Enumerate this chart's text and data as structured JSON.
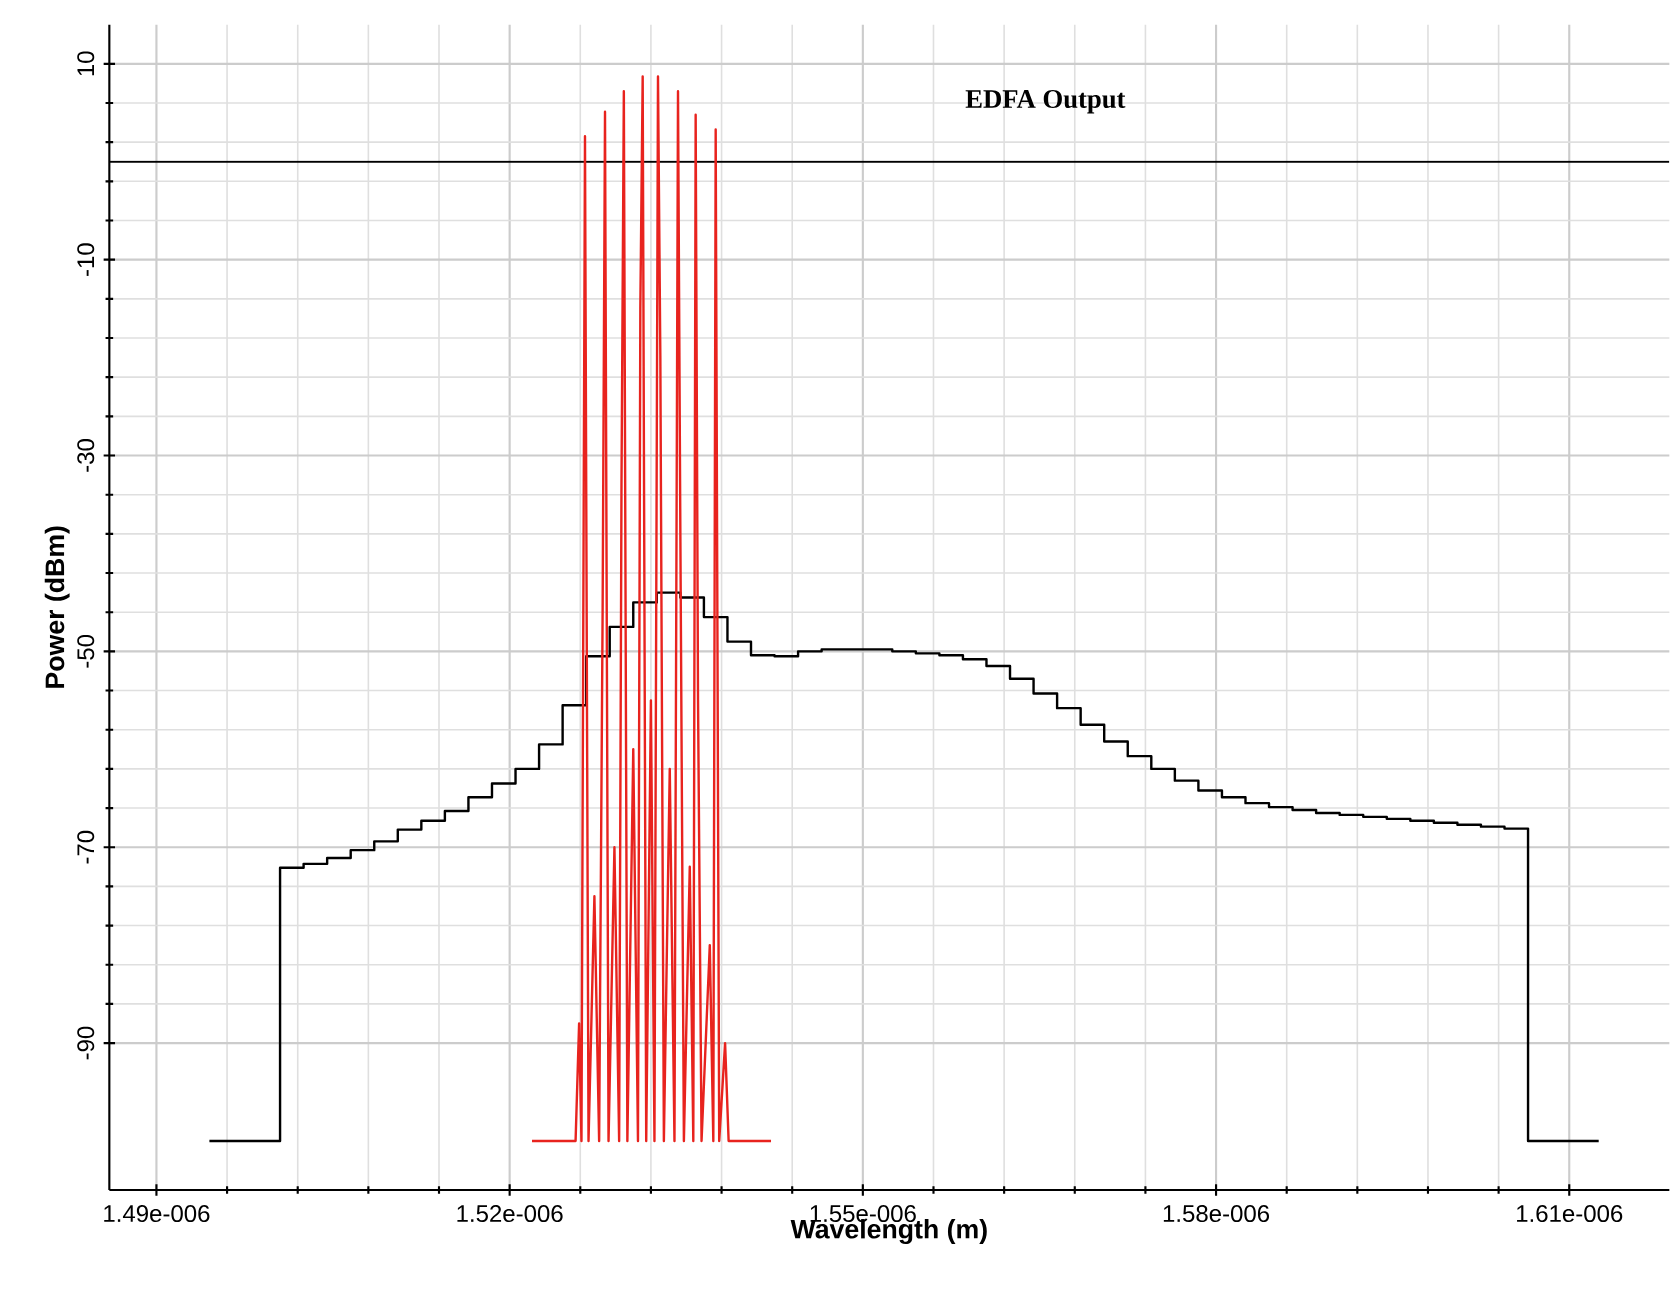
{
  "chart_data": {
    "type": "line",
    "title": "EDFA Output",
    "xlabel": "Wavelength (m)",
    "ylabel": "Power (dBm)",
    "xlim": [
      1.486e-06,
      1.6185e-06
    ],
    "ylim": [
      -105,
      14
    ],
    "xticks": [
      {
        "value": 1.49e-06,
        "label": "1.49e-006"
      },
      {
        "value": 1.52e-06,
        "label": "1.52e-006"
      },
      {
        "value": 1.55e-06,
        "label": "1.55e-006"
      },
      {
        "value": 1.58e-06,
        "label": "1.58e-006"
      },
      {
        "value": 1.61e-06,
        "label": "1.61e-006"
      }
    ],
    "yticks": [
      -90,
      -70,
      -50,
      -30,
      -10,
      10
    ],
    "grid": true,
    "legend": false,
    "marker": "none",
    "ref_lines": [
      {
        "axis": "y",
        "value": 0,
        "color": "#000000"
      }
    ],
    "series": [
      {
        "type": "step",
        "color": "#000000",
        "x": [
          1.4945e-06,
          1.4965e-06,
          1.4985e-06,
          1.5005e-06,
          1.5025e-06,
          1.5045e-06,
          1.5065e-06,
          1.5085e-06,
          1.5105e-06,
          1.5125e-06,
          1.5145e-06,
          1.5165e-06,
          1.5185e-06,
          1.5205e-06,
          1.5225e-06,
          1.5245e-06,
          1.5265e-06,
          1.5285e-06,
          1.5305e-06,
          1.5325e-06,
          1.5345e-06,
          1.5365e-06,
          1.5385e-06,
          1.5405e-06,
          1.5425e-06,
          1.5445e-06,
          1.5465e-06,
          1.5485e-06,
          1.5505e-06,
          1.5525e-06,
          1.5545e-06,
          1.5565e-06,
          1.5585e-06,
          1.5605e-06,
          1.5625e-06,
          1.5645e-06,
          1.5665e-06,
          1.5685e-06,
          1.5705e-06,
          1.5725e-06,
          1.5745e-06,
          1.5765e-06,
          1.5785e-06,
          1.5805e-06,
          1.5825e-06,
          1.5845e-06,
          1.5865e-06,
          1.5885e-06,
          1.5905e-06,
          1.5925e-06,
          1.5945e-06,
          1.5965e-06,
          1.5985e-06,
          1.6005e-06,
          1.6025e-06,
          1.6045e-06,
          1.6065e-06,
          1.6085e-06,
          1.6105e-06,
          1.6125e-06
        ],
        "values": [
          -100,
          -100,
          -100,
          -72.1,
          -71.7,
          -71.1,
          -70.3,
          -69.4,
          -68.2,
          -67.3,
          -66.3,
          -64.9,
          -63.5,
          -62.0,
          -59.5,
          -55.5,
          -50.5,
          -47.5,
          -45.0,
          -44.0,
          -44.5,
          -46.5,
          -49.0,
          -50.4,
          -50.5,
          -50.0,
          -49.8,
          -49.8,
          -49.8,
          -50.0,
          -50.2,
          -50.4,
          -50.8,
          -51.5,
          -52.8,
          -54.3,
          -55.8,
          -57.5,
          -59.2,
          -60.7,
          -62.0,
          -63.2,
          -64.2,
          -64.9,
          -65.5,
          -65.9,
          -66.2,
          -66.5,
          -66.7,
          -66.9,
          -67.1,
          -67.3,
          -67.5,
          -67.7,
          -67.9,
          -68.1,
          -100,
          -100,
          -100,
          -100
        ]
      },
      {
        "color": "#e8231e",
        "x": [
          1.5219e-06,
          1.5256e-06,
          1.5259e-06,
          1.5261e-06,
          1.5264e-06,
          1.5267e-06,
          1.5272e-06,
          1.5276e-06,
          1.5279e-06,
          1.5281e-06,
          1.5284e-06,
          1.5289e-06,
          1.5293e-06,
          1.5295e-06,
          1.5297e-06,
          1.53e-06,
          1.5305e-06,
          1.5309e-06,
          1.5311e-06,
          1.5313e-06,
          1.5316e-06,
          1.532e-06,
          1.5323e-06,
          1.5326e-06,
          1.5328e-06,
          1.5331e-06,
          1.5336e-06,
          1.534e-06,
          1.5343e-06,
          1.5345e-06,
          1.5348e-06,
          1.5353e-06,
          1.5356e-06,
          1.5358e-06,
          1.536e-06,
          1.5363e-06,
          1.537e-06,
          1.5373e-06,
          1.5375e-06,
          1.5378e-06,
          1.5383e-06,
          1.5386e-06,
          1.5422e-06
        ],
        "values": [
          -100,
          -100,
          -88,
          -100,
          2.6,
          -100,
          -75,
          -100,
          -45.5,
          5.1,
          -100,
          -70,
          -100,
          -33,
          7.2,
          -100,
          -60,
          -100,
          -15,
          8.7,
          -100,
          -55,
          -100,
          8.7,
          -19.8,
          -100,
          -62,
          -100,
          7.2,
          -37.8,
          -100,
          -72,
          -100,
          4.8,
          -55,
          -100,
          -80,
          -100,
          3.3,
          -100,
          -90,
          -100,
          -100
        ]
      }
    ]
  }
}
